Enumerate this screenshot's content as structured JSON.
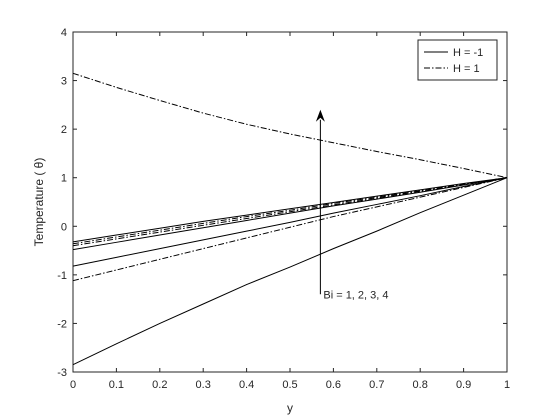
{
  "chart_data": {
    "type": "line",
    "title": "",
    "xlabel": "y",
    "ylabel": "Temperature ( θ)",
    "xlim": [
      0,
      1
    ],
    "ylim": [
      -3,
      4
    ],
    "xticks": [
      "0",
      "0.1",
      "0.2",
      "0.3",
      "0.4",
      "0.5",
      "0.6",
      "0.7",
      "0.8",
      "0.9",
      "1"
    ],
    "yticks": [
      "-3",
      "-2",
      "-1",
      "0",
      "1",
      "2",
      "3",
      "4"
    ],
    "grid": false,
    "legend": {
      "location": "top-right",
      "entries": [
        {
          "label": "H = -1",
          "style": "solid"
        },
        {
          "label": "H = 1",
          "style": "dashdot"
        }
      ]
    },
    "annotation": {
      "text": "Bi = 1, 2, 3, 4",
      "arrow_from": {
        "x": 0.57,
        "y": -1.4
      },
      "arrow_to": {
        "x": 0.57,
        "y": 2.4
      }
    },
    "x": [
      0,
      0.1,
      0.2,
      0.3,
      0.4,
      0.5,
      0.6,
      0.7,
      0.8,
      0.9,
      1.0
    ],
    "series": [
      {
        "style": "solid",
        "group": "H = -1",
        "values": [
          -2.85,
          -2.42,
          -2.0,
          -1.6,
          -1.2,
          -0.84,
          -0.46,
          -0.1,
          0.28,
          0.64,
          1.0
        ]
      },
      {
        "style": "solid",
        "group": "H = -1",
        "values": [
          -0.82,
          -0.64,
          -0.46,
          -0.28,
          -0.1,
          0.08,
          0.27,
          0.45,
          0.63,
          0.82,
          1.0
        ]
      },
      {
        "style": "solid",
        "group": "H = -1",
        "values": [
          -0.48,
          -0.33,
          -0.18,
          -0.03,
          0.12,
          0.27,
          0.42,
          0.56,
          0.7,
          0.85,
          1.0
        ]
      },
      {
        "style": "solid",
        "group": "H = -1",
        "values": [
          -0.32,
          -0.18,
          -0.04,
          0.1,
          0.23,
          0.36,
          0.49,
          0.62,
          0.75,
          0.88,
          1.0
        ]
      },
      {
        "style": "dashdot",
        "group": "H = 1",
        "values": [
          3.15,
          2.86,
          2.59,
          2.33,
          2.1,
          1.9,
          1.72,
          1.54,
          1.37,
          1.19,
          1.0
        ]
      },
      {
        "style": "dashdot",
        "group": "H = 1",
        "values": [
          -1.12,
          -0.9,
          -0.68,
          -0.46,
          -0.24,
          -0.02,
          0.2,
          0.4,
          0.6,
          0.8,
          1.0
        ]
      },
      {
        "style": "dashdot",
        "group": "H = 1",
        "values": [
          -0.4,
          -0.26,
          -0.12,
          0.02,
          0.16,
          0.3,
          0.44,
          0.58,
          0.72,
          0.86,
          1.0
        ]
      },
      {
        "style": "dashdot",
        "group": "H = 1",
        "values": [
          -0.36,
          -0.22,
          -0.08,
          0.06,
          0.2,
          0.33,
          0.47,
          0.6,
          0.73,
          0.87,
          1.0
        ]
      }
    ],
    "colors": {
      "line": "#000000",
      "axis": "#262626",
      "background": "#ffffff"
    }
  }
}
